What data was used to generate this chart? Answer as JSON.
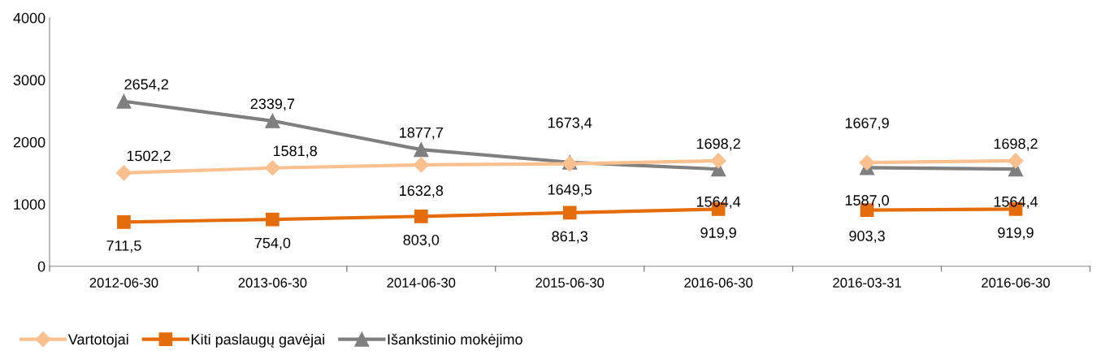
{
  "chart_data": {
    "type": "line",
    "categories": [
      "2012-06-30",
      "2013-06-30",
      "2014-06-30",
      "2015-06-30",
      "2016-06-30",
      "2016-03-31",
      "2016-06-30"
    ],
    "ylim": [
      0,
      4000
    ],
    "yticks": [
      0,
      1000,
      2000,
      3000,
      4000
    ],
    "grid": false,
    "legend": "bottom left",
    "series": [
      {
        "name": "Vartotojai",
        "color": "#fac090",
        "marker": "diamond",
        "values": [
          1502.2,
          1581.8,
          1632.8,
          1649.5,
          1698.2,
          null,
          null
        ],
        "value_labels": [
          "1502,2",
          "1581,8",
          "1632,8",
          "1649,5",
          "1698,2",
          null,
          null
        ]
      },
      {
        "name": "Kiti paslaugų gavėjai",
        "color": "#e46c0a",
        "marker": "square",
        "values": [
          711.5,
          754.0,
          803.0,
          861.3,
          919.9,
          null,
          null
        ],
        "value_labels": [
          "711,5",
          "754,0",
          "803,0",
          "861,3",
          "919,9",
          null,
          null
        ]
      },
      {
        "name": "Išankstinio mokėjimo",
        "color": "#7f7f7f",
        "marker": "triangle",
        "values": [
          2654.2,
          2339.7,
          1877.7,
          1673.4,
          1564.4,
          null,
          null
        ],
        "value_labels": [
          "2654,2",
          "2339,7",
          "1877,7",
          "1673,4",
          "1564,4",
          null,
          null
        ]
      },
      {
        "color": "#fac090",
        "marker": "diamond",
        "values": [
          null,
          null,
          null,
          null,
          null,
          1667.9,
          1698.2
        ],
        "value_labels": [
          null,
          null,
          null,
          null,
          null,
          "1667,9",
          "1698,2"
        ]
      },
      {
        "color": "#e46c0a",
        "marker": "square",
        "values": [
          null,
          null,
          null,
          null,
          null,
          903.3,
          919.9
        ],
        "value_labels": [
          null,
          null,
          null,
          null,
          null,
          "903,3",
          "919,9"
        ]
      },
      {
        "color": "#7f7f7f",
        "marker": "triangle",
        "values": [
          null,
          null,
          null,
          null,
          null,
          1587.0,
          1564.4
        ],
        "value_labels": [
          null,
          null,
          null,
          null,
          null,
          "1587,0",
          "1564,4"
        ]
      }
    ]
  }
}
